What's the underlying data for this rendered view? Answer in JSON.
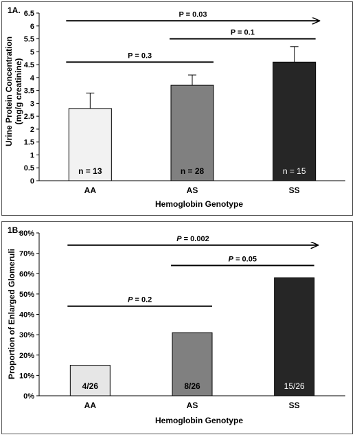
{
  "chart_data": [
    {
      "type": "bar",
      "panel_label": "1A.",
      "categories": [
        "AA",
        "AS",
        "SS"
      ],
      "values": [
        2.8,
        3.7,
        4.6
      ],
      "error_upper": [
        0.6,
        0.4,
        0.6
      ],
      "bar_labels": [
        "n = 13",
        "n = 28",
        "n = 15"
      ],
      "bar_colors": [
        "#f2f2f2",
        "#808080",
        "#262626"
      ],
      "bar_label_colors": [
        "#000000",
        "#000000",
        "#ffffff"
      ],
      "xlabel": "Hemoglobin Genotype",
      "ylabel_line1": "Urine Protein Concentration",
      "ylabel_line2": "(mg/g creatinine)",
      "ylim": [
        0,
        6.5
      ],
      "yticks": [
        0,
        0.5,
        1,
        1.5,
        2,
        2.5,
        3,
        3.5,
        4,
        4.5,
        5,
        5.5,
        6,
        6.5
      ],
      "ytick_labels": [
        "0",
        "0.5",
        "1",
        "1.5",
        "2",
        "2.5",
        "3",
        "3.5",
        "4",
        "4.5",
        "5",
        "5.5",
        "6",
        "6.5"
      ],
      "grid": false,
      "comparisons": [
        {
          "from": 0,
          "to": 2,
          "label": "P = 0.03",
          "arrow": true,
          "level": 6.2
        },
        {
          "from": 1,
          "to": 2,
          "label": "P = 0.1",
          "arrow": false,
          "level": 5.5
        },
        {
          "from": 0,
          "to": 1,
          "label": "P = 0.3",
          "arrow": false,
          "level": 4.6
        }
      ]
    },
    {
      "type": "bar",
      "panel_label": "1B.",
      "categories": [
        "AA",
        "AS",
        "SS"
      ],
      "values": [
        15,
        31,
        58
      ],
      "error_upper": [
        0,
        0,
        0
      ],
      "bar_labels": [
        "4/26",
        "8/26",
        "15/26"
      ],
      "bar_colors": [
        "#e6e6e6",
        "#808080",
        "#262626"
      ],
      "bar_label_colors": [
        "#000000",
        "#000000",
        "#ffffff"
      ],
      "xlabel": "Hemoglobin Genotype",
      "ylabel_line1": "Proportion of Enlarged Glomeruli",
      "ylabel_line2": "",
      "ylim": [
        0,
        80
      ],
      "yticks": [
        0,
        10,
        20,
        30,
        40,
        50,
        60,
        70,
        80
      ],
      "ytick_labels": [
        "0%",
        "10%",
        "20%",
        "30%",
        "40%",
        "50%",
        "60%",
        "70%",
        "80%"
      ],
      "grid": false,
      "comparisons": [
        {
          "from": 0,
          "to": 2,
          "label": "P = 0.002",
          "arrow": true,
          "level": 74
        },
        {
          "from": 1,
          "to": 2,
          "label": "P = 0.05",
          "arrow": false,
          "level": 64
        },
        {
          "from": 0,
          "to": 1,
          "label": "P = 0.2",
          "arrow": false,
          "level": 44
        }
      ]
    }
  ]
}
